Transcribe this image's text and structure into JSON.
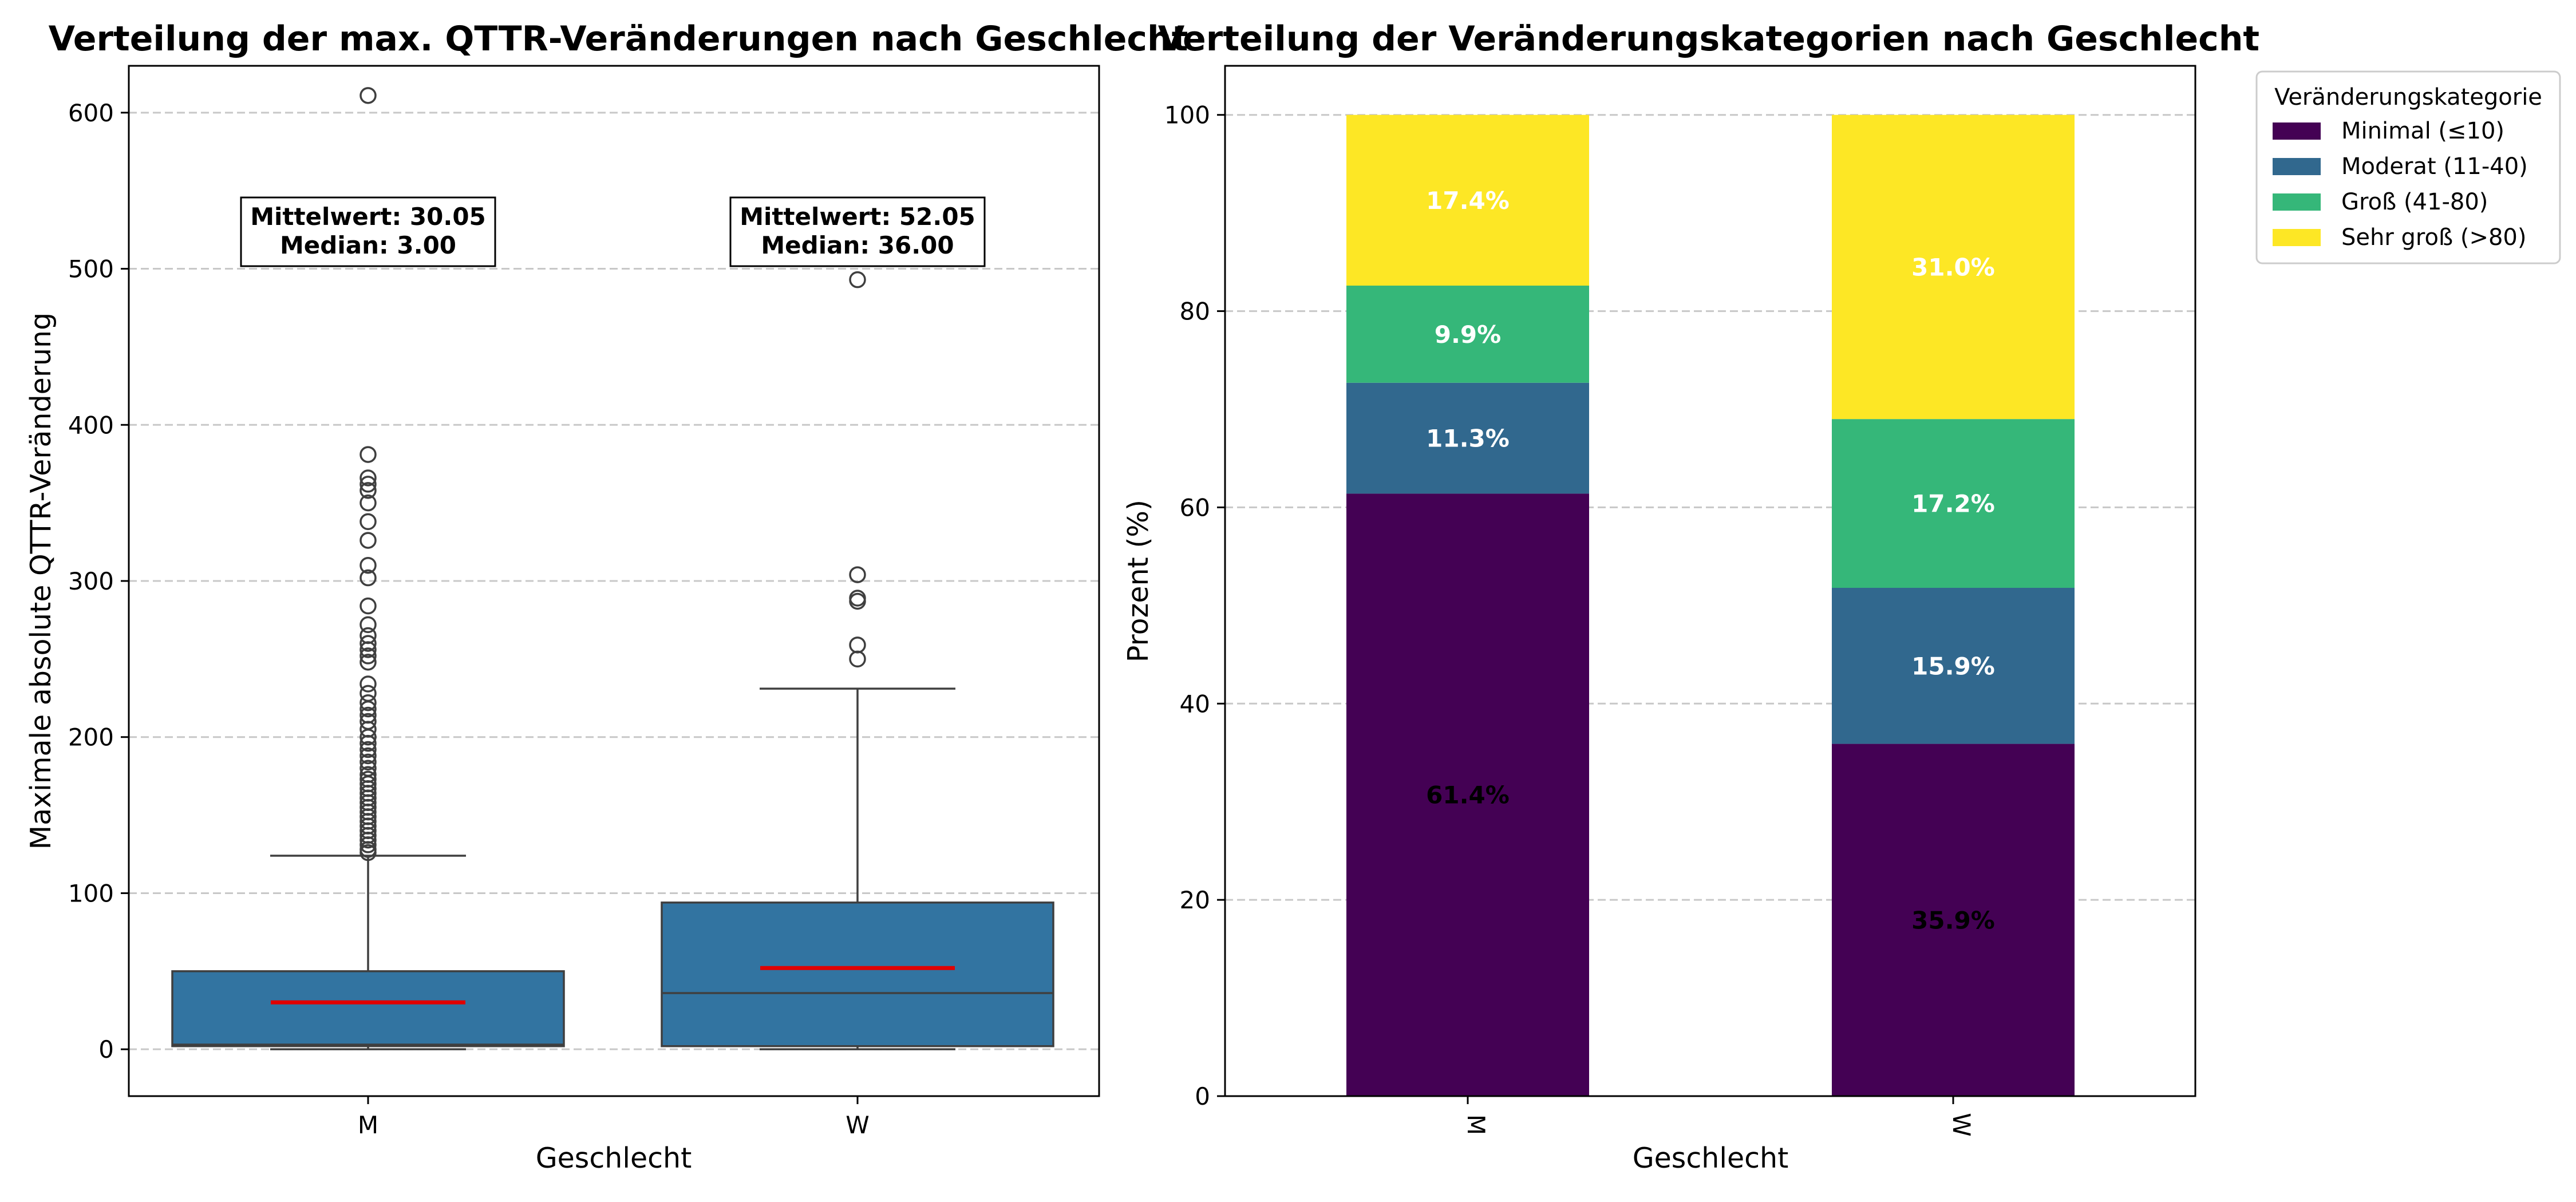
{
  "chart_data": [
    {
      "type": "box",
      "title": "Verteilung der max. QTTR-Veränderungen nach Geschlecht",
      "xlabel": "Geschlecht",
      "ylabel": "Maximale absolute QTTR-Veränderung",
      "categories": [
        "M",
        "W"
      ],
      "ylim": [
        -30,
        630
      ],
      "yticks": [
        0,
        100,
        200,
        300,
        400,
        500,
        600
      ],
      "grid": true,
      "box_color": "#3274a1",
      "mean_line_color": "#e00000",
      "boxes": [
        {
          "category": "M",
          "whisker_low": 0,
          "q1": 2,
          "median": 3.0,
          "q3": 50,
          "whisker_high": 124,
          "mean": 30.05,
          "mean_label": "Mittelwert: 30.05",
          "median_label": "Median: 3.00",
          "outliers": [
            126,
            128,
            131,
            134,
            137,
            140,
            143,
            146,
            149,
            152,
            155,
            158,
            161,
            164,
            167,
            170,
            173,
            176,
            180,
            184,
            188,
            192,
            196,
            200,
            205,
            210,
            214,
            218,
            222,
            228,
            234,
            248,
            252,
            256,
            260,
            265,
            272,
            284,
            302,
            310,
            326,
            338,
            350,
            358,
            362,
            366,
            381,
            611
          ]
        },
        {
          "category": "W",
          "whisker_low": 0,
          "q1": 2,
          "median": 36.0,
          "q3": 94,
          "whisker_high": 231,
          "mean": 52.05,
          "mean_label": "Mittelwert: 52.05",
          "median_label": "Median: 36.00",
          "outliers": [
            250,
            259,
            287,
            289,
            304,
            493
          ]
        }
      ]
    },
    {
      "type": "bar",
      "stacked": true,
      "title": "Verteilung der Veränderungskategorien nach Geschlecht",
      "xlabel": "Geschlecht",
      "ylabel": "Prozent (%)",
      "categories": [
        "M",
        "W"
      ],
      "ylim": [
        0,
        105
      ],
      "yticks": [
        0,
        20,
        40,
        60,
        80,
        100
      ],
      "grid": true,
      "legend_title": "Veränderungskategorie",
      "legend_position": "outside-top-right",
      "series": [
        {
          "name": "Minimal (≤10)",
          "color": "#440154",
          "values": [
            61.4,
            35.9
          ],
          "labels": [
            "61.4%",
            "35.9%"
          ],
          "label_color": "#000000"
        },
        {
          "name": "Moderat (11-40)",
          "color": "#31688e",
          "values": [
            11.3,
            15.9
          ],
          "labels": [
            "11.3%",
            "15.9%"
          ],
          "label_color": "#ffffff"
        },
        {
          "name": "Groß (41-80)",
          "color": "#35b779",
          "values": [
            9.9,
            17.2
          ],
          "labels": [
            "9.9%",
            "17.2%"
          ],
          "label_color": "#ffffff"
        },
        {
          "name": "Sehr groß (>80)",
          "color": "#fde725",
          "values": [
            17.4,
            31.0
          ],
          "labels": [
            "17.4%",
            "31.0%"
          ],
          "label_color": "#ffffff"
        }
      ]
    }
  ]
}
